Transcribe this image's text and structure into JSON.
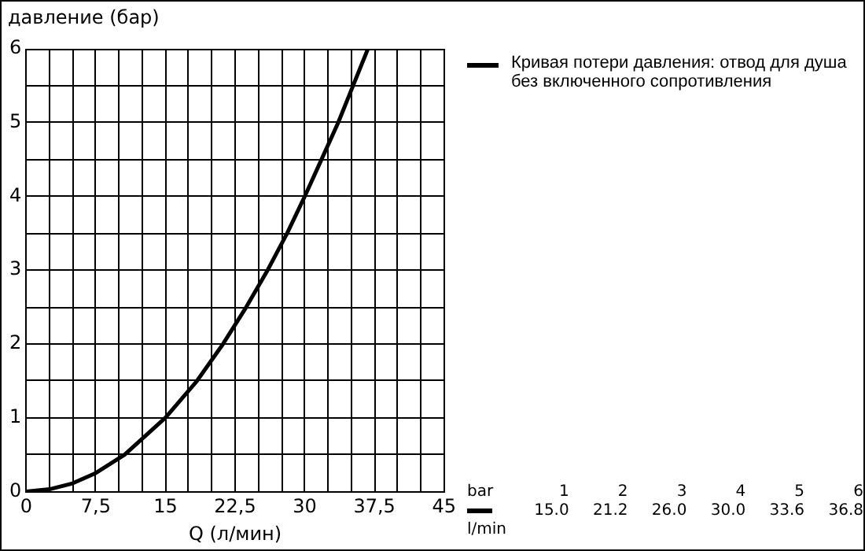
{
  "chart_data": {
    "type": "line",
    "xlabel": "Q (л/мин)",
    "ylabel": "давление (бар)",
    "x": [
      0,
      2.5,
      5,
      7.5,
      10.6,
      15,
      18.4,
      21.2,
      23.7,
      26,
      28.1,
      30,
      31.8,
      33.6,
      35.2,
      36.8
    ],
    "series": [
      {
        "name": "Кривая потери давления: отвод для душа без включенного сопротивления",
        "color": "#000000",
        "values": [
          0,
          0.03,
          0.11,
          0.25,
          0.5,
          1,
          1.5,
          2,
          2.5,
          3,
          3.5,
          4,
          4.5,
          5,
          5.5,
          6
        ]
      }
    ],
    "xlim": [
      0,
      45
    ],
    "xticks": [
      0,
      {
        "value": 2.5,
        "label": null
      },
      {
        "value": 5,
        "label": null
      },
      {
        "value": 7.5,
        "label": "7,5"
      },
      {
        "value": 10,
        "label": null
      },
      {
        "value": 12.5,
        "label": null
      },
      15,
      {
        "value": 17.5,
        "label": null
      },
      {
        "value": 20,
        "label": null
      },
      {
        "value": 22.5,
        "label": "22,5"
      },
      {
        "value": 25,
        "label": null
      },
      {
        "value": 27.5,
        "label": null
      },
      30,
      {
        "value": 32.5,
        "label": null
      },
      {
        "value": 35,
        "label": null
      },
      {
        "value": 37.5,
        "label": "37,5"
      },
      {
        "value": 40,
        "label": null
      },
      {
        "value": 42.5,
        "label": null
      },
      45
    ],
    "ylim": [
      0,
      6
    ],
    "yticks": [
      0,
      {
        "value": 0.5,
        "label": null
      },
      1,
      {
        "value": 1.5,
        "label": null
      },
      2,
      {
        "value": 2.5,
        "label": null
      },
      3,
      {
        "value": 3.5,
        "label": null
      },
      4,
      {
        "value": 4.5,
        "label": null
      },
      5,
      {
        "value": 5.5,
        "label": null
      },
      6
    ],
    "grid": true,
    "legend": "top right",
    "marker": "none",
    "line_style": "solid",
    "annotations": [
      "bar",
      "1",
      "2",
      "3",
      "4",
      "5",
      "6",
      "15.0",
      "21.2",
      "26.0",
      "30.0",
      "33.6",
      "36.8",
      "l/min"
    ]
  }
}
